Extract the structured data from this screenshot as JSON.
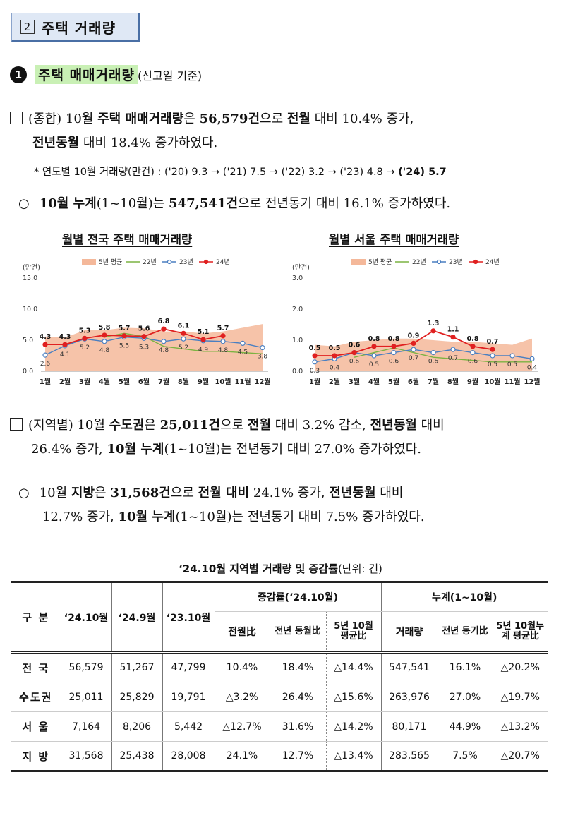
{
  "section": {
    "number": "2",
    "title": "주택 거래량"
  },
  "heading": {
    "bullet": "1",
    "title": "주택 매매거래량",
    "subtitle": "(신고일 기준)"
  },
  "p1": {
    "line1_a": "(종합) 10월 ",
    "line1_b": "주택 매매거래량",
    "line1_c": "은 ",
    "line1_d": "56,579건",
    "line1_e": "으로 ",
    "line1_f": "전월",
    "line1_g": " 대비 10.4% 증가,",
    "line2_a": "전년동월",
    "line2_b": " 대비 18.4% 증가하였다."
  },
  "note": {
    "prefix": "*  연도별 10월 거래량(만건) : ('20) 9.3 → ('21) 7.5 → ('22) 3.2 → ('23) 4.8 → ",
    "last": "('24) 5.7"
  },
  "p2": {
    "a": "10월 누계",
    "b": "(1~10월)는 ",
    "c": "547,541건",
    "d": "으로 전년동기 대비 16.1% 증가하였다."
  },
  "chart_data": [
    {
      "type": "line",
      "title": "월별 전국 주택 매매거래량",
      "ylabel": "(만건)",
      "ylim": [
        0,
        15
      ],
      "yticks": [
        "0.0",
        "5.0",
        "10.0",
        "15.0"
      ],
      "categories": [
        "1월",
        "2월",
        "3월",
        "4월",
        "5월",
        "6월",
        "7월",
        "8월",
        "9월",
        "10월",
        "11월",
        "12월"
      ],
      "series": [
        {
          "name": "5년 평균",
          "type": "area",
          "color": "#f4b89a",
          "values": [
            5.6,
            5.4,
            6.6,
            6.6,
            7.0,
            6.9,
            6.4,
            6.4,
            6.1,
            6.4,
            7.0,
            7.6
          ]
        },
        {
          "name": "22년",
          "color": "#7cb342",
          "values": [
            null,
            null,
            null,
            5.5,
            6.1,
            5.6,
            4.0,
            3.6,
            3.2,
            3.2,
            3.0,
            2.8
          ]
        },
        {
          "name": "23년",
          "color": "#4a7fc1",
          "values": [
            2.6,
            4.1,
            5.2,
            4.8,
            5.5,
            5.3,
            4.8,
            5.2,
            4.9,
            4.8,
            4.5,
            3.8
          ]
        },
        {
          "name": "24년",
          "color": "#e02020",
          "values": [
            4.3,
            4.3,
            5.3,
            5.8,
            5.7,
            5.6,
            6.8,
            6.1,
            5.1,
            5.7,
            null,
            null
          ]
        }
      ]
    },
    {
      "type": "line",
      "title": "월별 서울 주택 매매거래량",
      "ylabel": "(만건)",
      "ylim": [
        0,
        3
      ],
      "yticks": [
        "0.0",
        "1.0",
        "2.0",
        "3.0"
      ],
      "categories": [
        "1월",
        "2월",
        "3월",
        "4월",
        "5월",
        "6월",
        "7월",
        "8월",
        "9월",
        "10월",
        "11월",
        "12월"
      ],
      "series": [
        {
          "name": "5년 평균",
          "type": "area",
          "color": "#f4b89a",
          "values": [
            0.85,
            0.8,
            0.95,
            1.0,
            1.05,
            1.05,
            1.0,
            0.95,
            0.95,
            0.9,
            0.85,
            1.05
          ]
        },
        {
          "name": "22년",
          "color": "#7cb342",
          "values": [
            null,
            null,
            0.45,
            0.6,
            0.75,
            0.6,
            0.45,
            0.4,
            0.35,
            0.3,
            0.3,
            0.3
          ]
        },
        {
          "name": "23년",
          "color": "#4a7fc1",
          "values": [
            0.3,
            0.4,
            0.6,
            0.5,
            0.6,
            0.7,
            0.6,
            0.7,
            0.6,
            0.5,
            0.5,
            0.4
          ]
        },
        {
          "name": "24년",
          "color": "#e02020",
          "values": [
            0.5,
            0.5,
            0.6,
            0.8,
            0.8,
            0.9,
            1.3,
            1.1,
            0.8,
            0.7,
            null,
            null
          ]
        }
      ],
      "labels_23": [
        "0.3",
        "0.4",
        "0.6",
        "0.5",
        "0.6",
        "0.7",
        "0.6",
        "0.7",
        "0.6",
        "0.5",
        "0.5",
        "0.4"
      ],
      "labels_24": [
        "0.5",
        "0.5",
        "0.6",
        "0.8",
        "0.8",
        "0.9",
        "1.3",
        "1.1",
        "0.8",
        "0.7"
      ]
    }
  ],
  "p3": {
    "l1_a": "(지역별) 10월 ",
    "l1_b": "수도권",
    "l1_c": "은 ",
    "l1_d": "25,011건",
    "l1_e": "으로 ",
    "l1_f": "전월",
    "l1_g": " 대비 3.2% 감소, ",
    "l1_h": "전년동월",
    "l1_i": " 대비",
    "l2_a": "26.4% 증가, ",
    "l2_b": "10월 누계",
    "l2_c": "(1~10월)는 전년동기 대비 27.0% 증가하였다."
  },
  "p4": {
    "l1_a": "10월 ",
    "l1_b": "지방",
    "l1_c": "은 ",
    "l1_d": "31,568건",
    "l1_e": "으로 ",
    "l1_f": "전월 대비",
    "l1_g": " 24.1% 증가, ",
    "l1_h": "전년동월",
    "l1_i": " 대비",
    "l2_a": "12.7% 증가, ",
    "l2_b": "10월 누계",
    "l2_c": "(1~10월)는 전년동기 대비 7.5% 증가하였다."
  },
  "table": {
    "title": "‘24.10월 지역별 거래량 및 증감률",
    "unit": "(단위: 건)",
    "h_gubun": "구 분",
    "h_c1": "‘24.10월",
    "h_c2": "‘24.9월",
    "h_c3": "‘23.10월",
    "h_group1": "증감률(‘24.10월)",
    "h_group2": "누계(1~10월)",
    "h_g1a": "전월比",
    "h_g1b": "전년 동월比",
    "h_g1c": "5년 10월 평균比",
    "h_g2a": "거래량",
    "h_g2b": "전년 동기比",
    "h_g2c": "5년 10월누계 평균比",
    "rows": [
      {
        "name": "전 국",
        "c1": "56,579",
        "c2": "51,267",
        "c3": "47,799",
        "g1a": "10.4%",
        "g1b": "18.4%",
        "g1c": "△14.4%",
        "g2a": "547,541",
        "g2b": "16.1%",
        "g2c": "△20.2%"
      },
      {
        "name": "수도권",
        "c1": "25,011",
        "c2": "25,829",
        "c3": "19,791",
        "g1a": "△3.2%",
        "g1b": "26.4%",
        "g1c": "△15.6%",
        "g2a": "263,976",
        "g2b": "27.0%",
        "g2c": "△19.7%"
      },
      {
        "name": "서 울",
        "c1": "7,164",
        "c2": "8,206",
        "c3": "5,442",
        "g1a": "△12.7%",
        "g1b": "31.6%",
        "g1c": "△14.2%",
        "g2a": "80,171",
        "g2b": "44.9%",
        "g2c": "△13.2%"
      },
      {
        "name": "지 방",
        "c1": "31,568",
        "c2": "25,438",
        "c3": "28,008",
        "g1a": "24.1%",
        "g1b": "12.7%",
        "g1c": "△13.4%",
        "g2a": "283,565",
        "g2b": "7.5%",
        "g2c": "△20.7%"
      }
    ]
  }
}
